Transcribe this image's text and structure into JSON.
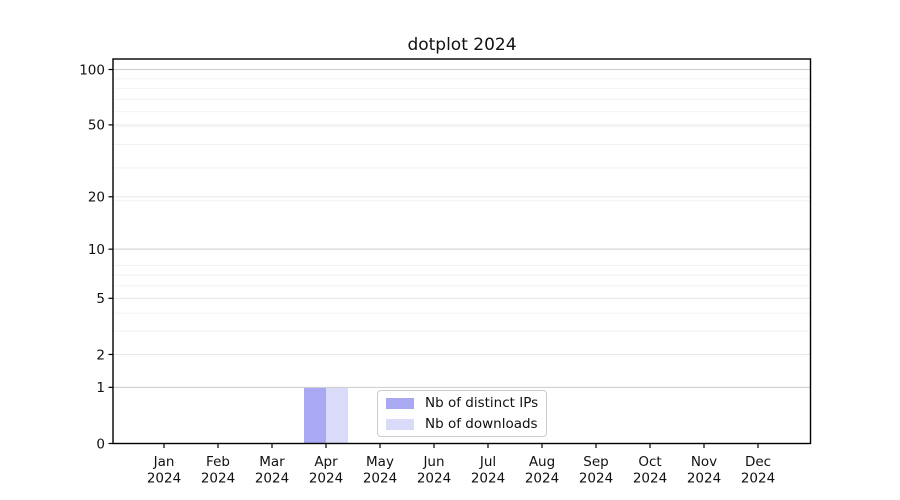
{
  "chart_data": {
    "type": "bar",
    "title": "dotplot 2024",
    "x_year": "2024",
    "categories": [
      "Jan",
      "Feb",
      "Mar",
      "Apr",
      "May",
      "Jun",
      "Jul",
      "Aug",
      "Sep",
      "Oct",
      "Nov",
      "Dec"
    ],
    "y_ticks": [
      0,
      1,
      2,
      5,
      10,
      20,
      50,
      100
    ],
    "y_minor_gridlines": [
      1,
      2,
      3,
      4,
      5,
      6,
      7,
      8,
      19,
      29,
      39,
      49,
      59,
      69,
      79,
      89
    ],
    "y_scale": "log1p",
    "ylim": [
      0,
      100
    ],
    "grid": true,
    "legend_position": "lower center",
    "colors": {
      "strong_gridline": "#cccccc",
      "major_gridline": "#e8e8e8",
      "minor_gridline": "#f2f2f2",
      "axis": "#000000",
      "text": "#111111"
    },
    "series": [
      {
        "name": "Nb of distinct IPs",
        "color": "#a9a9f3",
        "values": [
          0,
          0,
          0,
          1,
          0,
          0,
          0,
          0,
          0,
          0,
          0,
          0
        ]
      },
      {
        "name": "Nb of downloads",
        "color": "#dadaf9",
        "values": [
          0,
          0,
          0,
          1,
          0,
          0,
          0,
          0,
          0,
          0,
          0,
          0
        ]
      }
    ]
  }
}
